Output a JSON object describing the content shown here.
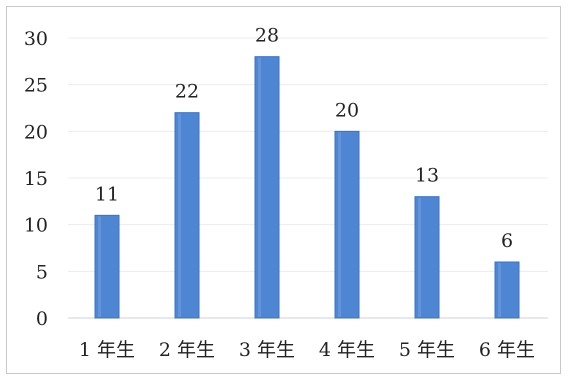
{
  "chart_data": {
    "type": "bar",
    "categories": [
      "1 年生",
      "2 年生",
      "3 年生",
      "4 年生",
      "5 年生",
      "6 年生"
    ],
    "values": [
      11,
      22,
      28,
      20,
      13,
      6
    ],
    "ylim": [
      0,
      30
    ],
    "yticks": [
      0,
      5,
      10,
      15,
      20,
      25,
      30
    ],
    "data_labels": [
      "11",
      "22",
      "28",
      "20",
      "13",
      "6"
    ],
    "grid": true,
    "legend": "none",
    "colors": {
      "bar_fill": "#4f86d4",
      "bar_edge": "#3b73c4",
      "bar_highlight": "#6c9fe2"
    }
  }
}
